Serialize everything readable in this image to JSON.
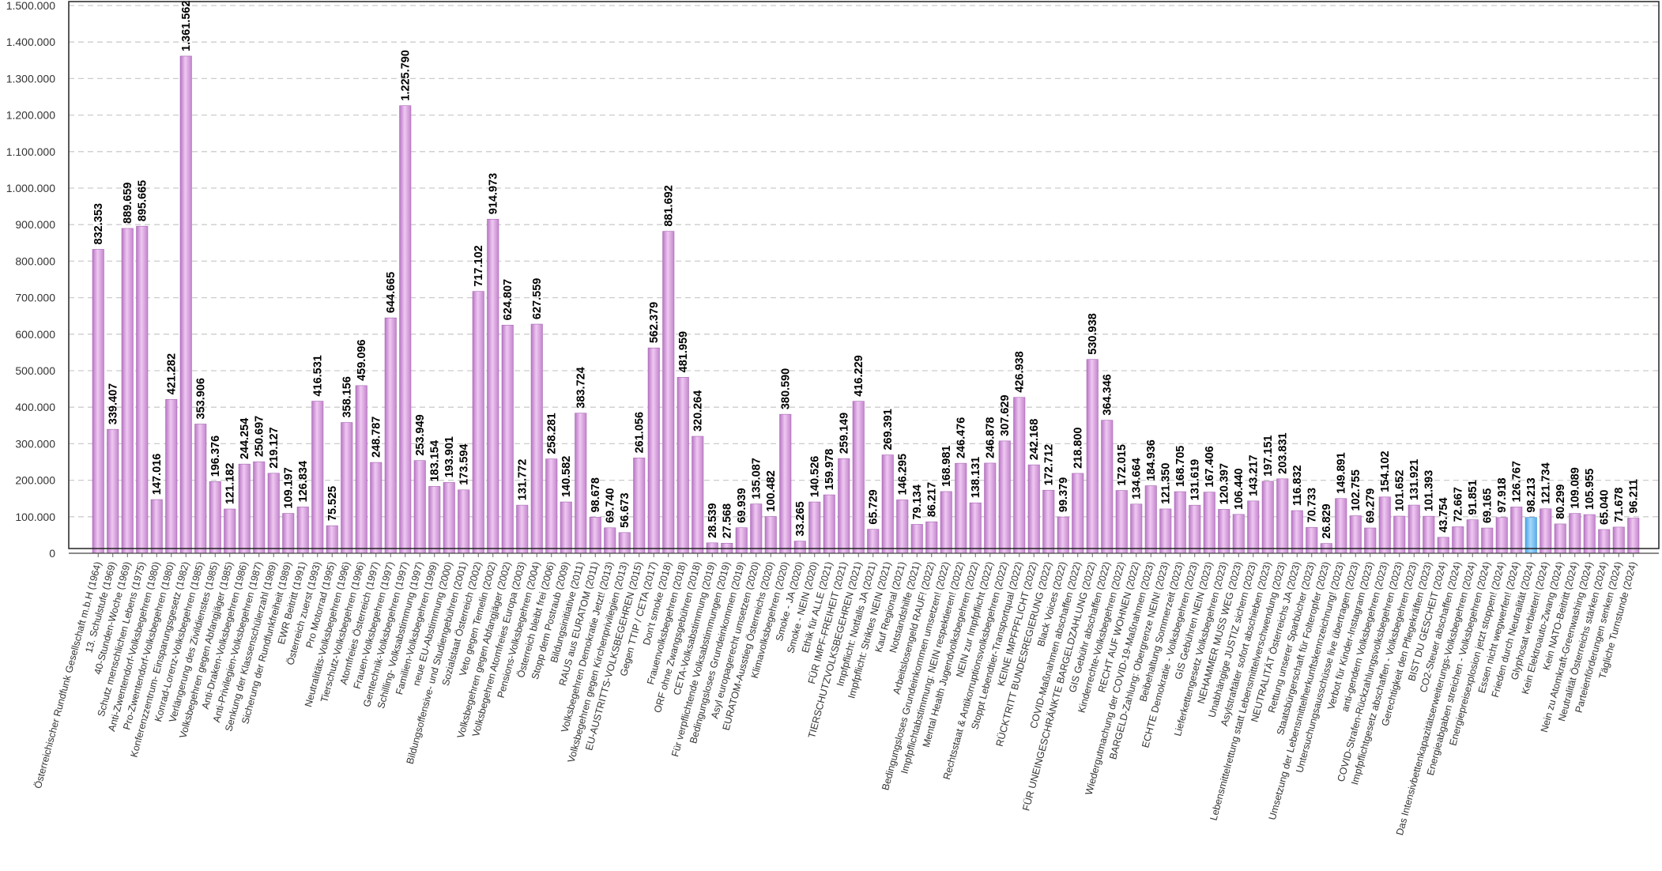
{
  "chart_data": {
    "type": "bar",
    "ylim": [
      0,
      1500000
    ],
    "yticks": [
      0,
      100000,
      200000,
      300000,
      400000,
      500000,
      600000,
      700000,
      800000,
      900000,
      1000000,
      1100000,
      1200000,
      1300000,
      1400000,
      1500000
    ],
    "ytick_labels": [
      "0",
      "100.000",
      "200.000",
      "300.000",
      "400.000",
      "500.000",
      "600.000",
      "700.000",
      "800.000",
      "900.000",
      "1.000.000",
      "1.100.000",
      "1.200.000",
      "1.300.000",
      "1.400.000",
      "1.500.000"
    ],
    "grid": true,
    "bar_color": "#d49ad8",
    "highlight_color": "#6fb8f0",
    "highlight_index": 98,
    "categories": [
      "Österreichischer Rundfunk Gesellschaft m.b.H (1964)",
      "13. Schulstufe (1969)",
      "40-Stunden-Woche (1969)",
      "Schutz menschlichen Lebens (1975)",
      "Anti-Zwentendorf-Volksbegehren (1980)",
      "Pro-Zwentendorf-Volksbegehren (1980)",
      "Konferenzzentrum- Einsparungsgesetz (1982)",
      "Konrad-Lorenz-Volksbegehren (1985)",
      "Verlängerung des Zivildienstes (1985)",
      "Volksbegehren gegen Abfangjäger (1985)",
      "Anti-Draken-Volksbegehren (1986)",
      "Anti-Privilegien-Volksbegehren (1987)",
      "Senkung der Klassenschülerzahl (1989)",
      "Sicherung der Rundfunkfreiheit (1989)",
      "EWR Beitritt (1991)",
      "Österreich zuerst (1993)",
      "Pro Motorrad (1995)",
      "Neutralitäts-Volksbegehren (1996)",
      "Tierschutz-Volksbegehren (1996)",
      "Atomfreies Österreich (1997)",
      "Frauen-Volksbegehren (1997)",
      "Gentechnik-Volksbegehren (1997)",
      "Schilling- Volksabstimmung (1997)",
      "Familien-Volksbegehren (1999)",
      "neue EU-Abstimmung (2000)",
      "Bildungsoffensive- und Studiengebühren (2001)",
      "Sozialstaat Österreich (2002)",
      "Veto gegen Temelin (2002)",
      "Volksbegehren gegen Abfangjäger (2002)",
      "Volksbegehren Atomfreies Europa (2003)",
      "Pensions-Volksbegehren (2004)",
      "Österreich bleibt frei (2006)",
      "Stopp dem Postraub (2009)",
      "Bildungsinitiative (2011)",
      "RAUS aus EURATOM (2011)",
      "Volksbegehren Demokratie Jetzt! (2013)",
      "Volksbegehren gegen Kirchenprivilegien (2013)",
      "EU-AUSTRITTS-VOLKSBEGEHREN (2015)",
      "Gegen TTIP / CETA (2017)",
      "Don't smoke (2018)",
      "Frauenvolksbegehren (2018)",
      "ORF ohne Zwangsgebühren (2018)",
      "CETA-Volksabstimmung (2019)",
      "Für verpflichtende Volksabstimmungen (2019)",
      "Bedingungsloses Grundeinkommen (2019)",
      "Asyl europagerecht umsetzen (2020)",
      "EURATOM-Ausstieg Österreichs (2020)",
      "Klimavolksbegehren (2020)",
      "Smoke - JA (2020)",
      "Smoke - NEIN (2020)",
      "Ethik für ALLE (2021)",
      "FÜR IMPF-FREIHEIT (2021)",
      "TIERSCHUTZVOLKSBEGEHREN (2021)",
      "Impfpflicht: Notfalls JA (2021)",
      "Impfpflicht: Striktes NEIN (2021)",
      "Kauf Regional (2021)",
      "Notstandshilfe (2021)",
      "Arbeitslosengeld RAUF! (2022)",
      "Bedingungsloses Grundeinkommen umsetzen! (2022)",
      "Impfpflichtabstimmung: NEIN respektieren! (2022)",
      "Mental Health Jugendvolksbegehren (2022)",
      "NEIN zur Impfpflicht (2022)",
      "Rechtsstaat & Antikorruptionsvolksbegehren (2022)",
      "Stoppt Lebendtier-Transportqual (2022)",
      "KEINE IMPFPFLICHT (2022)",
      "RÜCKTRITT BUNDESREGIERUNG (2022)",
      "Black Voices (2022)",
      "COVID-Maßnahmen abschaffen (2022)",
      "FÜR UNEINGESCHRÄNKTE BARGELDZAHLUNG (2022)",
      "GIS Gebühr abschaffen (2022)",
      "Kinderrechte-Volksbegehren (2022)",
      "RECHT AUF WOHNEN (2022)",
      "Wiedergutmachung der COVID-19-Maßnahmen (2023)",
      "BARGELD-Zahlung: Obergrenze NEIN! (2023)",
      "Beibehaltung Sommerzeit (2023)",
      "ECHTE Demokratie - Volksbegehren (2023)",
      "GIS Gebühren NEIN (2023)",
      "Lieferkettengesetz Volksbegehren (2023)",
      "NEHAMMER MUSS WEG (2023)",
      "Unabhängige JUSTIZ sichern (2023)",
      "Asylstraftäter sofort abschieben (2023)",
      "Lebensmittelrettung statt Lebensmittelverschwendung (2023)",
      "NEUTRALITÄT Österreichs JA (2023)",
      "Rettung unserer Sparbücher (2023)",
      "Staatsbürgerschaft für Folteropfer (2023)",
      "Umsetzung der Lebensmittelherkunftskennzeichnung! (2023)",
      "Untersuchungsausschüsse live übertragen (2023)",
      "Verbot für Kinder-Instagram (2023)",
      "anti-gendern Volksbegehren (2023)",
      "COVID-Strafen-Rückzahlungsvolksbegehren (2023)",
      "Impfpflichtgesetz abschaffen - Volksbegehren (2023)",
      "Gerechtigkeit den Pflegekräften (2023)",
      "BIST DU GESCHEIT (2024)",
      "CO2-Steuer abschaffen (2024)",
      "Das Intensivbettenkapazitätserweiterungs-Volksbegehren (2024)",
      "Energieabgaben streichen - Volksbegehren (2024)",
      "Energiepreisexplosion jetzt stoppen! (2024)",
      "Essen nicht wegwerfen! (2024)",
      "Frieden durch Neutralität (2024)",
      "Glyphosat verbieten! (2024)",
      "Kein Elektroauto-Zwang (2024)",
      "Kein NATO-Beitritt (2024)",
      "Nein zu Atomkraft-Greenwashing (2024)",
      "Neutralität Österreichs stärken (2024)",
      "Parteienförderungen senken (2024)",
      "Tägliche Turnstunde (2024)"
    ],
    "values": [
      832353,
      339407,
      889659,
      895665,
      147016,
      421282,
      1361562,
      353906,
      196376,
      121182,
      244254,
      250697,
      219127,
      109197,
      126834,
      416531,
      75525,
      358156,
      459096,
      248787,
      644665,
      1225790,
      253949,
      183154,
      193901,
      173594,
      717102,
      914973,
      624807,
      131772,
      627559,
      258281,
      140582,
      383724,
      98678,
      69740,
      56673,
      261056,
      562379,
      881692,
      481959,
      320264,
      28539,
      27568,
      69939,
      135087,
      100482,
      380590,
      33265,
      140526,
      159978,
      259149,
      416229,
      65729,
      269391,
      146295,
      79134,
      86217,
      168981,
      246476,
      138131,
      246878,
      307629,
      426938,
      242168,
      172712,
      99379,
      218800,
      530938,
      364346,
      172015,
      134664,
      184936,
      121350,
      168705,
      131619,
      167406,
      120397,
      106440,
      143217,
      197151,
      203831,
      116832,
      70733,
      26829,
      149891,
      102755,
      69279,
      154102,
      101652,
      131921,
      101393,
      43754,
      72667,
      91851,
      69165,
      97918,
      126767,
      98213,
      121734,
      80299,
      109089,
      105955,
      65040,
      71678,
      96211
    ],
    "value_labels": [
      "832.353",
      "339.407",
      "889.659",
      "895.665",
      "147.016",
      "421.282",
      "1.361.562",
      "353.906",
      "196.376",
      "121.182",
      "244.254",
      "250.697",
      "219.127",
      "109.197",
      "126.834",
      "416.531",
      "75.525",
      "358.156",
      "459.096",
      "248.787",
      "644.665",
      "1.225.790",
      "253.949",
      "183.154",
      "193.901",
      "173.594",
      "717.102",
      "914.973",
      "624.807",
      "131.772",
      "627.559",
      "258.281",
      "140.582",
      "383.724",
      "98.678",
      "69.740",
      "56.673",
      "261.056",
      "562.379",
      "881.692",
      "481.959",
      "320.264",
      "28.539",
      "27.568",
      "69.939",
      "135.087",
      "100.482",
      "380.590",
      "33.265",
      "140.526",
      "159.978",
      "259.149",
      "416.229",
      "65.729",
      "269.391",
      "146.295",
      "79.134",
      "86.217",
      "168.981",
      "246.476",
      "138.131",
      "246.878",
      "307.629",
      "426.938",
      "242.168",
      "172.712",
      "99.379",
      "218.800",
      "530.938",
      "364.346",
      "172.015",
      "134.664",
      "184.936",
      "121.350",
      "168.705",
      "131.619",
      "167.406",
      "120.397",
      "106.440",
      "143.217",
      "197.151",
      "203.831",
      "116.832",
      "70.733",
      "26.829",
      "149.891",
      "102.755",
      "69.279",
      "154.102",
      "101.652",
      "131.921",
      "101.393",
      "43.754",
      "72.667",
      "91.851",
      "69.165",
      "97.918",
      "126.767",
      "98.213",
      "121.734",
      "80.299",
      "109.089",
      "105.955",
      "65.040",
      "71.678",
      "96.211"
    ]
  }
}
